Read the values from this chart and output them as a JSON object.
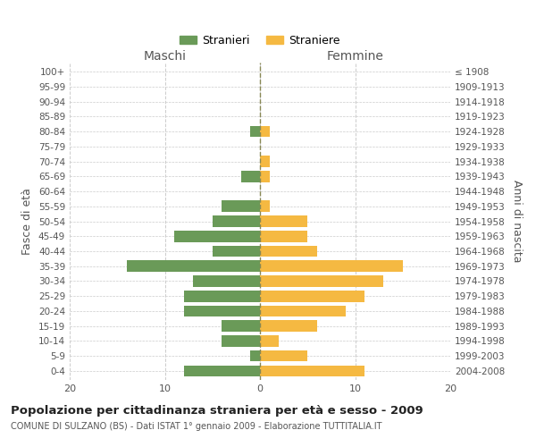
{
  "age_groups": [
    "0-4",
    "5-9",
    "10-14",
    "15-19",
    "20-24",
    "25-29",
    "30-34",
    "35-39",
    "40-44",
    "45-49",
    "50-54",
    "55-59",
    "60-64",
    "65-69",
    "70-74",
    "75-79",
    "80-84",
    "85-89",
    "90-94",
    "95-99",
    "100+"
  ],
  "birth_years": [
    "2004-2008",
    "1999-2003",
    "1994-1998",
    "1989-1993",
    "1984-1988",
    "1979-1983",
    "1974-1978",
    "1969-1973",
    "1964-1968",
    "1959-1963",
    "1954-1958",
    "1949-1953",
    "1944-1948",
    "1939-1943",
    "1934-1938",
    "1929-1933",
    "1924-1928",
    "1919-1923",
    "1914-1918",
    "1909-1913",
    "≤ 1908"
  ],
  "males": [
    8,
    1,
    4,
    4,
    8,
    8,
    7,
    14,
    5,
    9,
    5,
    4,
    0,
    2,
    0,
    0,
    1,
    0,
    0,
    0,
    0
  ],
  "females": [
    11,
    5,
    2,
    6,
    9,
    11,
    13,
    15,
    6,
    5,
    5,
    1,
    0,
    1,
    1,
    0,
    1,
    0,
    0,
    0,
    0
  ],
  "male_color": "#6a9a58",
  "female_color": "#f5b942",
  "title": "Popolazione per cittadinanza straniera per età e sesso - 2009",
  "subtitle": "COMUNE DI SULZANO (BS) - Dati ISTAT 1° gennaio 2009 - Elaborazione TUTTITALIA.IT",
  "xlabel_left": "Maschi",
  "xlabel_right": "Femmine",
  "ylabel_left": "Fasce di età",
  "ylabel_right": "Anni di nascita",
  "legend_males": "Stranieri",
  "legend_females": "Straniere",
  "xlim": 20,
  "background_color": "#ffffff",
  "grid_color": "#cccccc"
}
